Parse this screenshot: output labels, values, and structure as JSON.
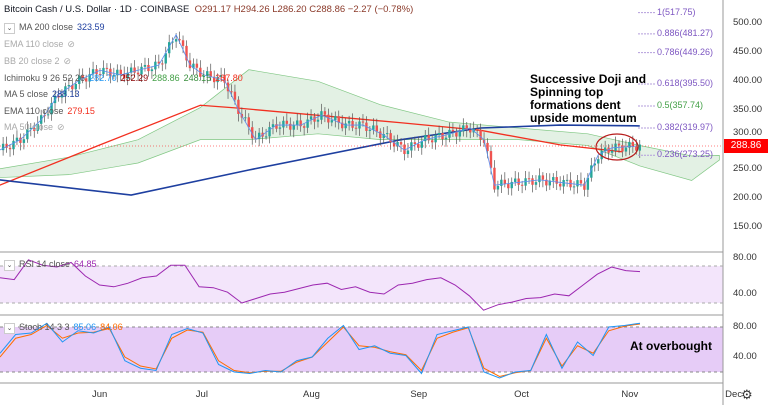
{
  "header": {
    "title": "Bitcoin Cash / U.S. Dollar · 1D · COINBASE",
    "open": "O291.17",
    "high": "H294.26",
    "low": "L286.20",
    "close": "C288.86",
    "change": "−2.27 (−0.78%)"
  },
  "indicators": {
    "ma200": {
      "label": "MA 200 close",
      "value": "323.59"
    },
    "ema110a": {
      "label": "EMA 110 close"
    },
    "bb": {
      "label": "BB 20 close 2"
    },
    "ichimoku": {
      "label": "Ichimoku 9 26 52 26",
      "v1": "282.70",
      "v2": "252.29",
      "v3": "288.86",
      "v4": "248.15",
      "v5": "267.80"
    },
    "ma5": {
      "label": "MA 5 close",
      "value": "288.13"
    },
    "ema110": {
      "label": "EMA 110 close",
      "value": "279.15"
    },
    "ma50": {
      "label": "MA 50 close"
    },
    "rsi": {
      "label": "RSI 14 close",
      "value": "64.85"
    },
    "stoch": {
      "label": "Stoch 14 3 3",
      "k": "85.06",
      "d": "84.06"
    }
  },
  "fib": [
    {
      "label": "1(517.75)",
      "v": 517.75
    },
    {
      "label": "0.886(481.27)",
      "v": 481.27
    },
    {
      "label": "0.786(449.26)",
      "v": 449.26
    },
    {
      "label": "0.618(395.50)",
      "v": 395.5
    },
    {
      "label": "0.5(357.74)",
      "v": 357.74
    },
    {
      "label": "0.382(319.97)",
      "v": 319.97
    },
    {
      "label": "0.236(273.25)",
      "v": 273.25
    }
  ],
  "annotations": {
    "price": "Successive Doji and Spinning top formations dent upside momentum",
    "stoch": "At overbought"
  },
  "last_price": "288.86",
  "colors": {
    "up": "#26a69a",
    "down": "#ef5350",
    "ma200": "#1e3fa0",
    "ema110": "#f23020",
    "rsi": "#9c27b0",
    "k": "#2196f3",
    "d": "#ff6d00"
  },
  "chart_data": {
    "type": "line",
    "title": "Bitcoin Cash / U.S. Dollar · 1D · COINBASE",
    "price_axis": {
      "ticks": [
        "500.00",
        "450.00",
        "400.00",
        "350.00",
        "300.00",
        "250.00",
        "200.00",
        "150.00"
      ],
      "ylim": [
        110,
        530
      ]
    },
    "rsi_axis": {
      "ticks": [
        "80.00",
        "40.00"
      ]
    },
    "stoch_axis": {
      "ticks": [
        "80.00",
        "40.00"
      ]
    },
    "x_ticks": [
      {
        "label": "Jun",
        "day": 29
      },
      {
        "label": "Jul",
        "day": 59
      },
      {
        "label": "Aug",
        "day": 90
      },
      {
        "label": "Sep",
        "day": 121
      },
      {
        "label": "Oct",
        "day": 151
      },
      {
        "label": "Nov",
        "day": 182
      },
      {
        "label": "Dec",
        "day": 212
      }
    ],
    "close": {
      "days": [
        0,
        6,
        12,
        17,
        23,
        29,
        35,
        40,
        46,
        51,
        55,
        59,
        65,
        69,
        74,
        80,
        87,
        93,
        100,
        105,
        111,
        117,
        123,
        129,
        136,
        140,
        143,
        149,
        156,
        163,
        169,
        173,
        177,
        184
      ],
      "values": [
        282,
        300,
        334,
        377,
        402,
        419,
        411,
        419,
        428,
        480,
        428,
        411,
        402,
        351,
        300,
        325,
        325,
        342,
        325,
        325,
        308,
        282,
        300,
        308,
        320,
        300,
        222,
        226,
        231,
        226,
        222,
        274,
        286,
        289
      ]
    },
    "ma200": {
      "days": [
        0,
        38,
        72,
        116,
        139,
        162,
        185
      ],
      "values": [
        231,
        205,
        248,
        300,
        320,
        325,
        323.59
      ]
    },
    "ema110": {
      "days": [
        0,
        29,
        58,
        69,
        116,
        139,
        162,
        180
      ],
      "values": [
        222,
        291,
        359,
        354,
        329,
        316,
        291,
        279.15
      ]
    },
    "cloud": {
      "days": [
        0,
        20,
        40,
        58,
        72,
        92,
        110,
        130,
        150,
        170,
        185,
        200,
        208
      ],
      "upper": [
        250,
        270,
        300,
        355,
        420,
        400,
        360,
        330,
        320,
        310,
        290,
        272,
        273
      ],
      "lower": [
        235,
        240,
        260,
        300,
        300,
        310,
        300,
        300,
        300,
        290,
        255,
        230,
        265
      ]
    },
    "rsi": [
      58,
      56,
      78,
      72,
      70,
      75,
      60,
      50,
      48,
      52,
      58,
      60,
      72,
      72,
      48,
      47,
      42,
      30,
      35,
      40,
      42,
      46,
      50,
      52,
      45,
      48,
      42,
      40,
      50,
      52,
      56,
      58,
      50,
      38,
      22,
      28,
      31,
      35,
      36,
      40,
      38,
      50,
      62,
      70,
      66,
      64.85
    ],
    "stoch_k": [
      45,
      70,
      72,
      85,
      60,
      75,
      72,
      80,
      35,
      25,
      22,
      70,
      78,
      72,
      30,
      20,
      18,
      22,
      20,
      35,
      40,
      65,
      82,
      50,
      55,
      45,
      42,
      18,
      70,
      75,
      80,
      20,
      12,
      20,
      22,
      70,
      25,
      60,
      42,
      80,
      82,
      85.06
    ],
    "stoch_d": [
      40,
      65,
      70,
      82,
      65,
      72,
      73,
      78,
      40,
      28,
      24,
      65,
      76,
      73,
      35,
      22,
      19,
      21,
      21,
      33,
      40,
      60,
      80,
      55,
      53,
      47,
      43,
      22,
      65,
      73,
      79,
      25,
      14,
      19,
      22,
      65,
      28,
      55,
      45,
      75,
      81,
      84.06
    ]
  }
}
